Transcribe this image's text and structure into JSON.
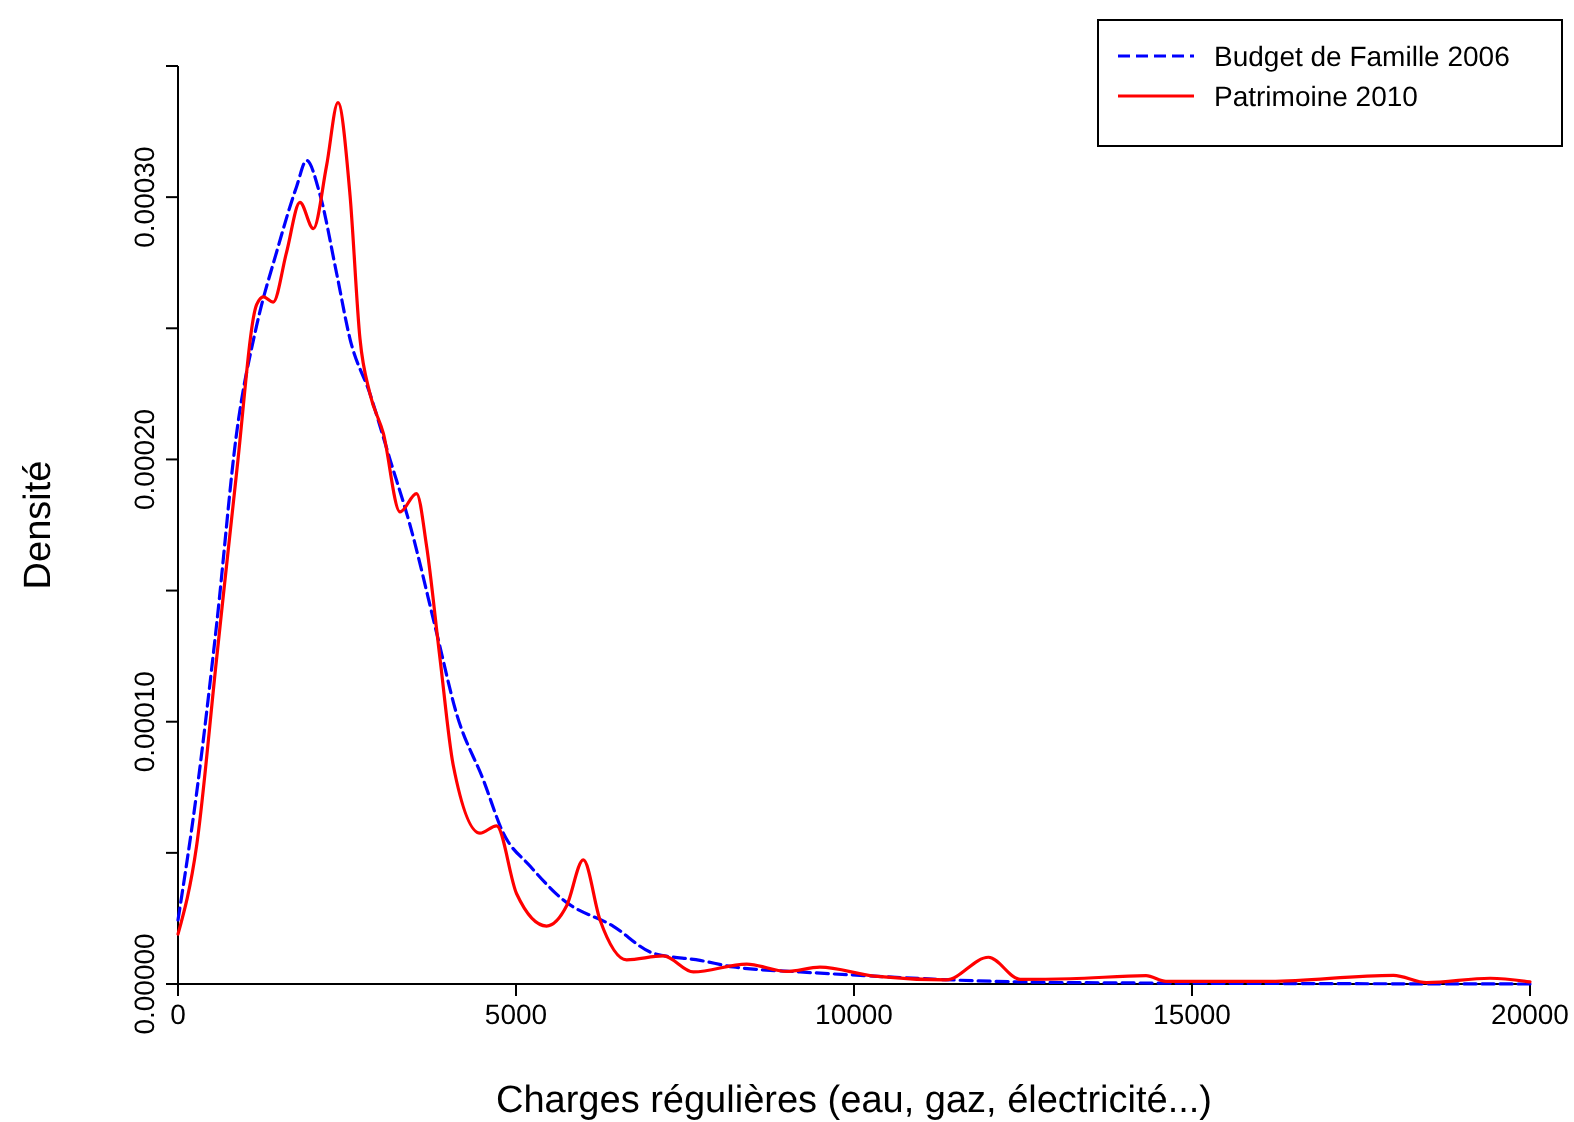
{
  "chart_data": {
    "type": "line",
    "xlabel": "Charges régulières (eau, gaz, électricité...)",
    "ylabel": "Densité",
    "xlim": [
      0,
      20000
    ],
    "xticks": [
      0,
      5000,
      10000,
      15000,
      20000
    ],
    "ylim": [
      0,
      0.00035
    ],
    "yticks": [
      {
        "value": 0,
        "label": "0.00000"
      },
      {
        "value": 5e-05,
        "label": null
      },
      {
        "value": 0.0001,
        "label": "0.00010"
      },
      {
        "value": 0.00015,
        "label": null
      },
      {
        "value": 0.0002,
        "label": "0.00020"
      },
      {
        "value": 0.00025,
        "label": null
      },
      {
        "value": 0.0003,
        "label": "0.00030"
      },
      {
        "value": 0.00035,
        "label": null
      }
    ],
    "legend": "top right",
    "grid": false,
    "series": [
      {
        "name": "Budget de Famille 2006",
        "color": "#0000ff",
        "line_style": "dashed",
        "x": [
          0,
          275,
          571,
          867,
          1163,
          1458,
          1754,
          1902,
          2100,
          2346,
          2544,
          2840,
          3136,
          3432,
          3825,
          4121,
          4517,
          4813,
          5207,
          5701,
          6441,
          7033,
          7722,
          8216,
          9201,
          10300,
          11500,
          13400,
          20000
        ],
        "values": [
          2.44e-05,
          7.27e-05,
          0.000137,
          0.00021,
          0.000251,
          0.000279,
          0.000304,
          0.000314,
          0.000301,
          0.000271,
          0.000246,
          0.000225,
          0.0002,
          0.000175,
          0.000134,
          0.000103,
          7.78e-05,
          5.75e-05,
          4.5e-05,
          3.2e-05,
          2.2e-05,
          1.17e-05,
          9e-06,
          6.5e-06,
          4.6e-06,
          3e-06,
          1.5e-06,
          5e-07,
          0
        ]
      },
      {
        "name": "Patrimoine 2010",
        "color": "#ff0000",
        "line_style": "solid",
        "x": [
          0,
          275,
          571,
          867,
          1163,
          1263,
          1408,
          1606,
          1804,
          2002,
          2198,
          2366,
          2544,
          2692,
          2840,
          3037,
          3284,
          3529,
          3677,
          3876,
          4073,
          4467,
          4713,
          5009,
          5453,
          5749,
          5996,
          6243,
          6637,
          7180,
          7624,
          8412,
          9004,
          9497,
          10300,
          11361,
          11990,
          12456,
          13200,
          14320,
          14615,
          16100,
          17980,
          18470,
          19410,
          20000
        ],
        "values": [
          1.9e-05,
          5.26e-05,
          0.000124,
          0.000195,
          0.000259,
          0.000262,
          0.00026,
          0.000279,
          0.000298,
          0.000288,
          0.000312,
          0.000336,
          0.000301,
          0.000246,
          0.000225,
          0.00021,
          0.00018,
          0.000187,
          0.000167,
          0.000124,
          8.32e-05,
          5.75e-05,
          6.03e-05,
          3.44e-05,
          2.21e-05,
          2.98e-05,
          4.73e-05,
          2.44e-05,
          9.2e-06,
          1.07e-05,
          4.6e-06,
          7.6e-06,
          4.8e-06,
          6.4e-06,
          3e-06,
          1.6e-06,
          1.02e-05,
          1.8e-06,
          2e-06,
          3.2e-06,
          1e-06,
          1e-06,
          3.3e-06,
          5e-07,
          2.2e-06,
          8e-07
        ]
      }
    ]
  }
}
